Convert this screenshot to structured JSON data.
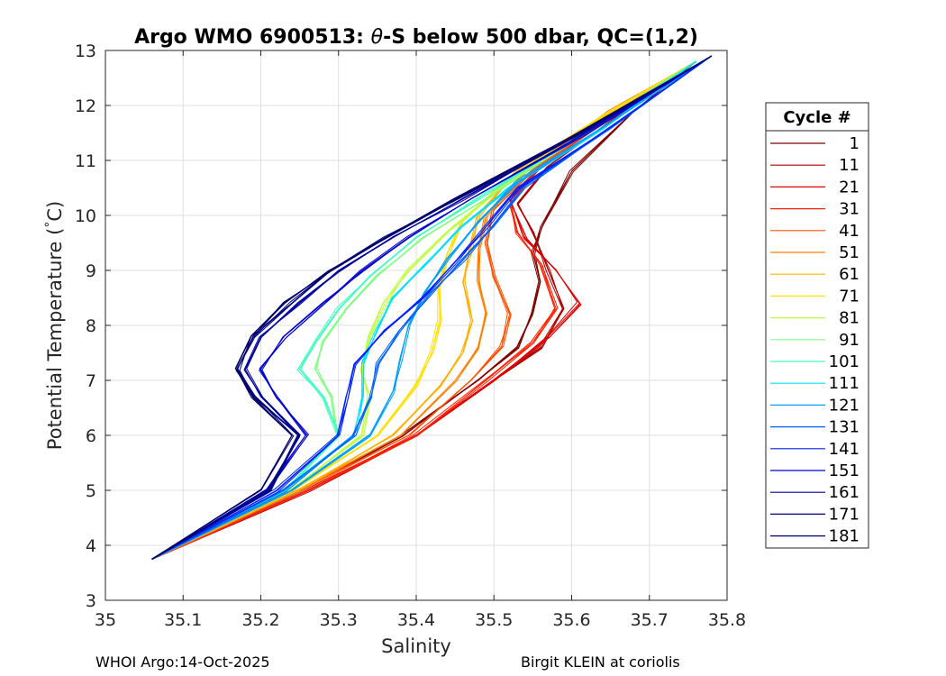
{
  "chart_data": {
    "type": "line",
    "title_prefix": "Argo WMO 6900513: ",
    "title_theta": "θ",
    "title_suffix": "-S below 500 dbar,  QC=(1,2)",
    "xlabel": "Salinity",
    "ylabel_text": "Potential Temperature (",
    "ylabel_degree": "°",
    "ylabel_unit": "C)",
    "xlim": [
      35,
      35.8
    ],
    "ylim": [
      3,
      13
    ],
    "xticks": [
      35,
      35.1,
      35.2,
      35.3,
      35.4,
      35.5,
      35.6,
      35.7,
      35.8
    ],
    "xtick_labels": [
      "35",
      "35.1",
      "35.2",
      "35.3",
      "35.4",
      "35.5",
      "35.6",
      "35.7",
      "35.8"
    ],
    "yticks": [
      3,
      4,
      5,
      6,
      7,
      8,
      9,
      10,
      11,
      12,
      13
    ],
    "ytick_labels": [
      "3",
      "4",
      "5",
      "6",
      "7",
      "8",
      "9",
      "10",
      "11",
      "12",
      "13"
    ],
    "grid": true,
    "legend": {
      "title": "Cycle #",
      "position": "right outside",
      "entries": [
        "1",
        "11",
        "21",
        "31",
        "41",
        "51",
        "61",
        "71",
        "81",
        "91",
        "101",
        "111",
        "121",
        "131",
        "141",
        "151",
        "161",
        "171",
        "181"
      ],
      "colors": [
        "#800000",
        "#b00000",
        "#e00000",
        "#ff2000",
        "#ff5000",
        "#ff8000",
        "#ffb000",
        "#ffe000",
        "#c0ff40",
        "#80ff80",
        "#40ffc0",
        "#00e0ff",
        "#00a0ff",
        "#0060ff",
        "#0020ff",
        "#0000d0",
        "#00009f",
        "#000080",
        "#00006a"
      ]
    },
    "series": [
      {
        "name": "1",
        "color": "#800000",
        "S": [
          35.06,
          35.25,
          35.38,
          35.48,
          35.53,
          35.55,
          35.56,
          35.55,
          35.56,
          35.6,
          35.68,
          35.76
        ],
        "T": [
          3.75,
          5.0,
          6.0,
          7.0,
          7.6,
          8.2,
          8.8,
          9.3,
          9.8,
          10.8,
          11.9,
          12.8
        ]
      },
      {
        "name": "11",
        "color": "#b00000",
        "S": [
          35.06,
          35.26,
          35.4,
          35.5,
          35.56,
          35.59,
          35.57,
          35.55,
          35.53,
          35.57,
          35.67,
          35.76
        ],
        "T": [
          3.75,
          5.0,
          6.0,
          7.0,
          7.6,
          8.3,
          9.0,
          9.7,
          10.2,
          10.9,
          11.9,
          12.8
        ]
      },
      {
        "name": "21",
        "color": "#e00000",
        "S": [
          35.06,
          35.26,
          35.4,
          35.5,
          35.57,
          35.61,
          35.58,
          35.54,
          35.52,
          35.56,
          35.66,
          35.76
        ],
        "T": [
          3.75,
          5.0,
          6.0,
          7.0,
          7.8,
          8.4,
          9.0,
          9.6,
          10.3,
          10.9,
          11.9,
          12.8
        ]
      },
      {
        "name": "31",
        "color": "#ff2000",
        "S": [
          35.06,
          35.26,
          35.4,
          35.49,
          35.55,
          35.58,
          35.56,
          35.53,
          35.52,
          35.56,
          35.66,
          35.76
        ],
        "T": [
          3.75,
          5.0,
          6.0,
          7.0,
          7.7,
          8.3,
          9.1,
          9.7,
          10.2,
          10.9,
          11.9,
          12.8
        ]
      },
      {
        "name": "41",
        "color": "#ff5000",
        "S": [
          35.06,
          35.25,
          35.39,
          35.47,
          35.51,
          35.52,
          35.5,
          35.49,
          35.5,
          35.55,
          35.66,
          35.76
        ],
        "T": [
          3.75,
          5.0,
          6.0,
          7.0,
          7.6,
          8.2,
          8.9,
          9.5,
          10.1,
          10.8,
          11.9,
          12.8
        ]
      },
      {
        "name": "51",
        "color": "#ff8000",
        "S": [
          35.06,
          35.25,
          35.38,
          35.45,
          35.48,
          35.49,
          35.48,
          35.48,
          35.49,
          35.54,
          35.65,
          35.76
        ],
        "T": [
          3.75,
          5.0,
          6.0,
          7.0,
          7.6,
          8.2,
          8.8,
          9.4,
          10.0,
          10.8,
          11.9,
          12.8
        ]
      },
      {
        "name": "61",
        "color": "#ffb000",
        "S": [
          35.06,
          35.25,
          35.37,
          35.43,
          35.46,
          35.47,
          35.46,
          35.47,
          35.48,
          35.53,
          35.65,
          35.76
        ],
        "T": [
          3.75,
          5.0,
          6.0,
          6.9,
          7.5,
          8.1,
          8.8,
          9.4,
          10.0,
          10.8,
          11.9,
          12.8
        ]
      },
      {
        "name": "71",
        "color": "#ffe000",
        "S": [
          35.06,
          35.24,
          35.35,
          35.4,
          35.42,
          35.43,
          35.43,
          35.44,
          35.46,
          35.52,
          35.64,
          35.76
        ],
        "T": [
          3.75,
          5.0,
          6.0,
          6.9,
          7.5,
          8.1,
          8.7,
          9.3,
          9.9,
          10.7,
          11.8,
          12.8
        ]
      },
      {
        "name": "81",
        "color": "#c0ff40",
        "S": [
          35.06,
          35.24,
          35.33,
          35.34,
          35.33,
          35.34,
          35.36,
          35.39,
          35.44,
          35.51,
          35.64,
          35.76
        ],
        "T": [
          3.75,
          5.0,
          6.0,
          6.7,
          7.2,
          7.8,
          8.4,
          9.0,
          9.7,
          10.5,
          11.7,
          12.8
        ]
      },
      {
        "name": "91",
        "color": "#80ff80",
        "S": [
          35.06,
          35.23,
          35.3,
          35.29,
          35.27,
          35.28,
          35.31,
          35.35,
          35.41,
          35.5,
          35.63,
          35.76
        ],
        "T": [
          3.75,
          5.0,
          6.0,
          6.7,
          7.2,
          7.7,
          8.3,
          8.9,
          9.6,
          10.4,
          11.6,
          12.8
        ]
      },
      {
        "name": "101",
        "color": "#40ffc0",
        "S": [
          35.06,
          35.23,
          35.3,
          35.28,
          35.25,
          35.27,
          35.3,
          35.34,
          35.4,
          35.49,
          35.63,
          35.76
        ],
        "T": [
          3.75,
          5.0,
          6.0,
          6.7,
          7.2,
          7.7,
          8.3,
          8.9,
          9.6,
          10.4,
          11.6,
          12.8
        ]
      },
      {
        "name": "111",
        "color": "#00e0ff",
        "S": [
          35.06,
          35.23,
          35.32,
          35.33,
          35.33,
          35.35,
          35.37,
          35.41,
          35.46,
          35.52,
          35.64,
          35.76
        ],
        "T": [
          3.75,
          5.0,
          6.0,
          6.7,
          7.3,
          7.9,
          8.5,
          9.1,
          9.8,
          10.5,
          11.6,
          12.8
        ]
      },
      {
        "name": "121",
        "color": "#00a0ff",
        "S": [
          35.06,
          35.24,
          35.34,
          35.37,
          35.38,
          35.39,
          35.41,
          35.44,
          35.48,
          35.53,
          35.65,
          35.77
        ],
        "T": [
          3.75,
          5.0,
          6.0,
          6.8,
          7.4,
          8.0,
          8.6,
          9.2,
          9.9,
          10.6,
          11.7,
          12.8
        ]
      },
      {
        "name": "131",
        "color": "#0060ff",
        "S": [
          35.06,
          35.23,
          35.32,
          35.34,
          35.35,
          35.38,
          35.42,
          35.46,
          35.5,
          35.54,
          35.65,
          35.77
        ],
        "T": [
          3.75,
          5.0,
          6.0,
          6.7,
          7.3,
          7.9,
          8.6,
          9.2,
          9.8,
          10.5,
          11.6,
          12.8
        ]
      },
      {
        "name": "141",
        "color": "#0020ff",
        "S": [
          35.06,
          35.22,
          35.3,
          35.31,
          35.32,
          35.36,
          35.41,
          35.45,
          35.49,
          35.53,
          35.65,
          35.78
        ],
        "T": [
          3.75,
          5.0,
          6.0,
          6.7,
          7.3,
          7.9,
          8.5,
          9.1,
          9.8,
          10.5,
          11.6,
          12.9
        ]
      },
      {
        "name": "151",
        "color": "#0000d0",
        "S": [
          35.06,
          35.21,
          35.26,
          35.22,
          35.2,
          35.23,
          35.28,
          35.33,
          35.39,
          35.47,
          35.62,
          35.78
        ],
        "T": [
          3.75,
          5.0,
          6.0,
          6.7,
          7.2,
          7.8,
          8.4,
          9.0,
          9.6,
          10.3,
          11.5,
          12.9
        ]
      },
      {
        "name": "161",
        "color": "#00009f",
        "S": [
          35.06,
          35.21,
          35.25,
          35.2,
          35.18,
          35.2,
          35.25,
          35.3,
          35.37,
          35.46,
          35.61,
          35.78
        ],
        "T": [
          3.75,
          5.0,
          6.0,
          6.7,
          7.2,
          7.8,
          8.4,
          9.0,
          9.6,
          10.3,
          11.5,
          12.9
        ]
      },
      {
        "name": "171",
        "color": "#000080",
        "S": [
          35.06,
          35.21,
          35.25,
          35.19,
          35.17,
          35.19,
          35.24,
          35.29,
          35.36,
          35.45,
          35.61,
          35.78
        ],
        "T": [
          3.75,
          5.0,
          6.0,
          6.7,
          7.2,
          7.8,
          8.4,
          9.0,
          9.6,
          10.3,
          11.5,
          12.9
        ]
      },
      {
        "name": "181",
        "color": "#00006a",
        "S": [
          35.06,
          35.2,
          35.24,
          35.19,
          35.17,
          35.19,
          35.23,
          35.29,
          35.36,
          35.45,
          35.61,
          35.78
        ],
        "T": [
          3.75,
          5.0,
          6.0,
          6.7,
          7.2,
          7.8,
          8.4,
          9.0,
          9.6,
          10.3,
          11.5,
          12.9
        ]
      }
    ]
  },
  "footer": {
    "left": "WHOI Argo:14-Oct-2025",
    "right": "Birgit KLEIN at coriolis"
  }
}
